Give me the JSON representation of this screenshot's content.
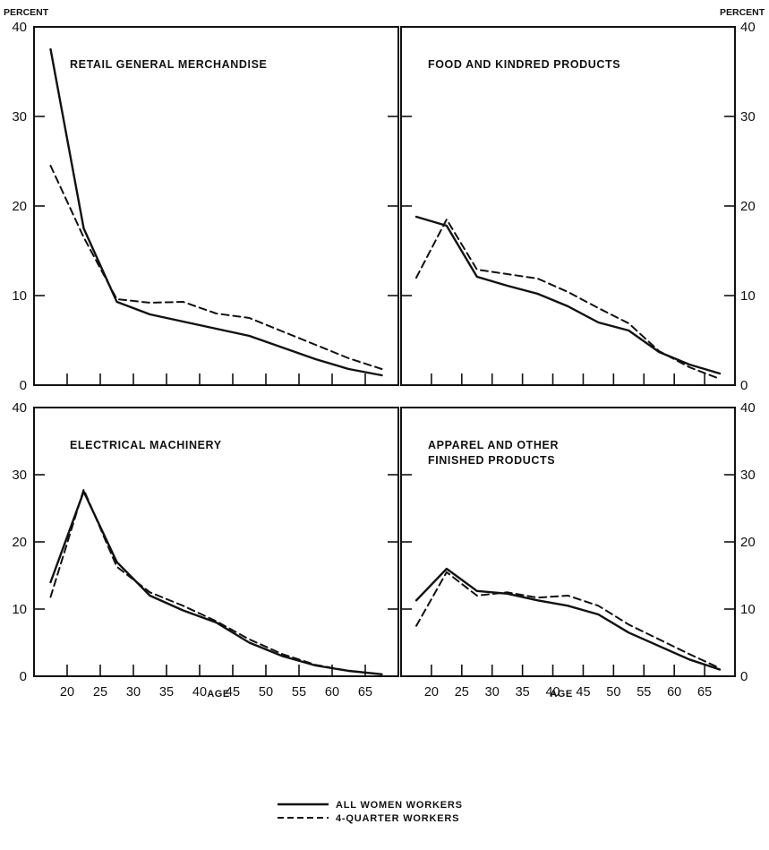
{
  "figure": {
    "y_unit_left": "PERCENT",
    "y_unit_right": "PERCENT",
    "x_axis_title": "AGE",
    "legend": [
      {
        "label": "ALL WOMEN WORKERS",
        "style": "solid"
      },
      {
        "label": "4-QUARTER WORKERS",
        "style": "dashed"
      }
    ]
  },
  "chart_data": [
    {
      "type": "line",
      "panel": "top-left",
      "title_lines": [
        "RETAIL GENERAL MERCHANDISE"
      ],
      "x": [
        17.5,
        22.5,
        27.5,
        32.5,
        37.5,
        42.5,
        47.5,
        52.5,
        57.5,
        62.5,
        67.5
      ],
      "series": [
        {
          "name": "ALL WOMEN WORKERS",
          "style": "solid",
          "values": [
            37.5,
            17.5,
            9.3,
            7.9,
            7.1,
            6.3,
            5.5,
            4.2,
            2.9,
            1.8,
            1.1
          ]
        },
        {
          "name": "4-QUARTER WORKERS",
          "style": "dashed",
          "values": [
            24.5,
            16.5,
            9.6,
            9.2,
            9.3,
            8.0,
            7.5,
            6.0,
            4.5,
            3.0,
            1.8
          ]
        }
      ],
      "xlim": [
        15,
        70
      ],
      "ylim": [
        0,
        40
      ],
      "y_ticks": [
        0,
        10,
        20,
        30,
        40
      ],
      "x_ticks": [
        20,
        25,
        30,
        35,
        40,
        45,
        50,
        55,
        60,
        65
      ]
    },
    {
      "type": "line",
      "panel": "top-right",
      "title_lines": [
        "FOOD AND KINDRED PRODUCTS"
      ],
      "x": [
        17.5,
        22.5,
        27.5,
        32.5,
        37.5,
        42.5,
        47.5,
        52.5,
        57.5,
        62.5,
        67.5
      ],
      "series": [
        {
          "name": "ALL WOMEN WORKERS",
          "style": "solid",
          "values": [
            18.8,
            17.8,
            12.1,
            11.1,
            10.2,
            8.8,
            7.0,
            6.1,
            3.7,
            2.3,
            1.3
          ]
        },
        {
          "name": "4-QUARTER WORKERS",
          "style": "dashed",
          "values": [
            12.0,
            18.5,
            12.9,
            12.4,
            11.9,
            10.4,
            8.6,
            6.9,
            3.8,
            2.0,
            0.7
          ]
        }
      ],
      "xlim": [
        15,
        70
      ],
      "ylim": [
        0,
        40
      ],
      "y_ticks": [
        0,
        10,
        20,
        30,
        40
      ],
      "x_ticks": [
        20,
        25,
        30,
        35,
        40,
        45,
        50,
        55,
        60,
        65
      ]
    },
    {
      "type": "line",
      "panel": "bottom-left",
      "title_lines": [
        "ELECTRICAL MACHINERY"
      ],
      "x": [
        17.5,
        22.5,
        27.5,
        32.5,
        37.5,
        42.5,
        47.5,
        52.5,
        57.5,
        62.5,
        67.5
      ],
      "series": [
        {
          "name": "ALL WOMEN WORKERS",
          "style": "solid",
          "values": [
            14.0,
            27.5,
            17.0,
            12.0,
            9.8,
            8.0,
            5.0,
            3.0,
            1.6,
            0.8,
            0.3
          ]
        },
        {
          "name": "4-QUARTER WORKERS",
          "style": "dashed",
          "values": [
            11.8,
            27.8,
            16.3,
            12.5,
            10.5,
            8.2,
            5.5,
            3.3,
            1.7,
            0.8,
            0.3
          ]
        }
      ],
      "xlim": [
        15,
        70
      ],
      "ylim": [
        0,
        40
      ],
      "y_ticks": [
        0,
        10,
        20,
        30,
        40
      ],
      "x_ticks": [
        20,
        25,
        30,
        35,
        40,
        45,
        50,
        55,
        60,
        65
      ],
      "x_tick_labels": [
        "20",
        "25",
        "30",
        "35",
        "40",
        "45",
        "50",
        "55",
        "60",
        "65"
      ]
    },
    {
      "type": "line",
      "panel": "bottom-right",
      "title_lines": [
        "APPAREL AND OTHER",
        "FINISHED PRODUCTS"
      ],
      "x": [
        17.5,
        22.5,
        27.5,
        32.5,
        37.5,
        42.5,
        47.5,
        52.5,
        57.5,
        62.5,
        67.5
      ],
      "series": [
        {
          "name": "ALL WOMEN WORKERS",
          "style": "solid",
          "values": [
            11.3,
            16.0,
            12.7,
            12.3,
            11.3,
            10.5,
            9.2,
            6.5,
            4.5,
            2.5,
            1.0
          ]
        },
        {
          "name": "4-QUARTER WORKERS",
          "style": "dashed",
          "values": [
            7.5,
            15.5,
            12.0,
            12.5,
            11.7,
            12.0,
            10.5,
            7.7,
            5.5,
            3.3,
            1.2
          ]
        }
      ],
      "xlim": [
        15,
        70
      ],
      "ylim": [
        0,
        40
      ],
      "y_ticks": [
        0,
        10,
        20,
        30,
        40
      ],
      "x_ticks": [
        20,
        25,
        30,
        35,
        40,
        45,
        50,
        55,
        60,
        65
      ],
      "x_tick_labels": [
        "20",
        "25",
        "30",
        "35",
        "40",
        "45",
        "50",
        "55",
        "60",
        "65"
      ]
    }
  ]
}
